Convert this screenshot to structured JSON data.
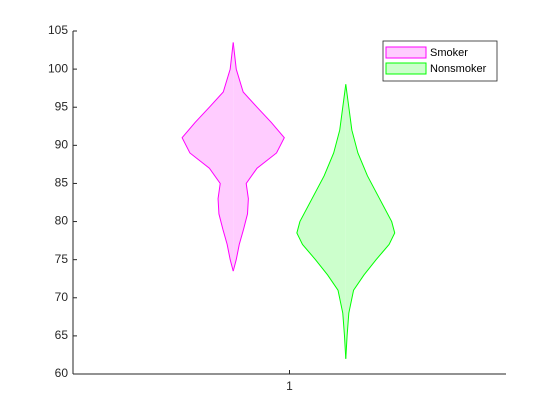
{
  "chart_data": {
    "type": "violin",
    "xlim": [
      0.5,
      1.5
    ],
    "xticks": [
      1
    ],
    "ylim": [
      60,
      105
    ],
    "yticks": [
      60,
      65,
      70,
      75,
      80,
      85,
      90,
      95,
      100,
      105
    ],
    "legend": "northeast",
    "series": [
      {
        "name": "Smoker",
        "color": "#ff00ff",
        "facecolor": "#ffccff",
        "x": 0.87,
        "y": [
          103.5,
          100,
          97,
          95,
          93,
          91,
          89,
          87,
          85,
          83,
          81,
          79,
          77,
          75,
          73.5
        ],
        "width": [
          0,
          0.007,
          0.023,
          0.055,
          0.088,
          0.118,
          0.1,
          0.055,
          0.03,
          0.035,
          0.033,
          0.024,
          0.014,
          0.007,
          0
        ]
      },
      {
        "name": "Nonsmoker",
        "color": "#00ff00",
        "facecolor": "#ccffcc",
        "x": 1.13,
        "y": [
          98,
          95,
          92,
          89,
          86,
          83,
          80,
          78.5,
          77,
          75,
          73,
          71,
          68,
          65,
          62
        ],
        "width": [
          0,
          0.007,
          0.014,
          0.028,
          0.05,
          0.078,
          0.106,
          0.113,
          0.1,
          0.07,
          0.042,
          0.018,
          0.007,
          0.003,
          0
        ]
      }
    ]
  }
}
